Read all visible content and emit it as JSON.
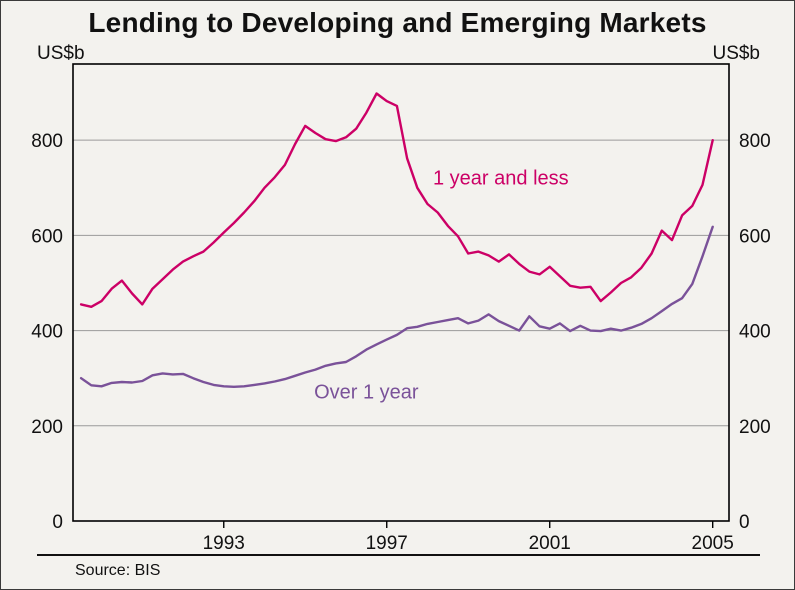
{
  "source": "Source: BIS",
  "chart_data": {
    "type": "line",
    "title": "Lending to Developing and Emerging Markets",
    "y_unit_left": "US$b",
    "y_unit_right": "US$b",
    "xlabel": "",
    "ylabel": "US$b",
    "xlim": [
      1989.3,
      2005.4
    ],
    "ylim": [
      0,
      960
    ],
    "yticks": [
      0,
      200,
      400,
      600,
      800
    ],
    "xticks": [
      1993,
      1997,
      2001,
      2005
    ],
    "grid": true,
    "legend_position": "inline-annotations",
    "x": [
      1989.5,
      1989.75,
      1990.0,
      1990.25,
      1990.5,
      1990.75,
      1991.0,
      1991.25,
      1991.5,
      1991.75,
      1992.0,
      1992.25,
      1992.5,
      1992.75,
      1993.0,
      1993.25,
      1993.5,
      1993.75,
      1994.0,
      1994.25,
      1994.5,
      1994.75,
      1995.0,
      1995.25,
      1995.5,
      1995.75,
      1996.0,
      1996.25,
      1996.5,
      1996.75,
      1997.0,
      1997.25,
      1997.5,
      1997.75,
      1998.0,
      1998.25,
      1998.5,
      1998.75,
      1999.0,
      1999.25,
      1999.5,
      1999.75,
      2000.0,
      2000.25,
      2000.5,
      2000.75,
      2001.0,
      2001.25,
      2001.5,
      2001.75,
      2002.0,
      2002.25,
      2002.5,
      2002.75,
      2003.0,
      2003.25,
      2003.5,
      2003.75,
      2004.0,
      2004.25,
      2004.5,
      2004.75,
      2005.0
    ],
    "series": [
      {
        "name": "1 year and less",
        "color": "#cc0066",
        "values": [
          455,
          450,
          462,
          488,
          505,
          478,
          455,
          488,
          508,
          528,
          545,
          556,
          566,
          585,
          606,
          626,
          648,
          672,
          700,
          722,
          748,
          792,
          830,
          815,
          802,
          798,
          806,
          824,
          858,
          898,
          882,
          872,
          762,
          700,
          666,
          648,
          620,
          598,
          562,
          566,
          558,
          545,
          560,
          540,
          524,
          518,
          534,
          514,
          494,
          490,
          492,
          462,
          480,
          500,
          512,
          532,
          562,
          610,
          590,
          642,
          662,
          706,
          800
        ]
      },
      {
        "name": "Over 1 year",
        "color": "#7a5299",
        "values": [
          300,
          285,
          283,
          290,
          292,
          291,
          294,
          306,
          310,
          308,
          309,
          300,
          292,
          286,
          283,
          282,
          283,
          286,
          289,
          293,
          298,
          305,
          312,
          318,
          326,
          331,
          334,
          346,
          360,
          371,
          381,
          391,
          405,
          408,
          414,
          418,
          422,
          426,
          415,
          421,
          434,
          420,
          410,
          400,
          430,
          409,
          404,
          415,
          399,
          410,
          400,
          399,
          404,
          400,
          406,
          414,
          426,
          441,
          456,
          468,
          498,
          556,
          618
        ]
      }
    ],
    "annotations": [
      {
        "text": "1 year and less",
        "x": 1999.8,
        "y": 722,
        "color": "#cc0066"
      },
      {
        "text": "Over 1 year",
        "x": 1996.5,
        "y": 272,
        "color": "#7a5299"
      }
    ],
    "colors": {
      "grid": "#9a9a9a",
      "axis": "#000000",
      "background": "#f3f2ee",
      "text": "#111111"
    }
  }
}
